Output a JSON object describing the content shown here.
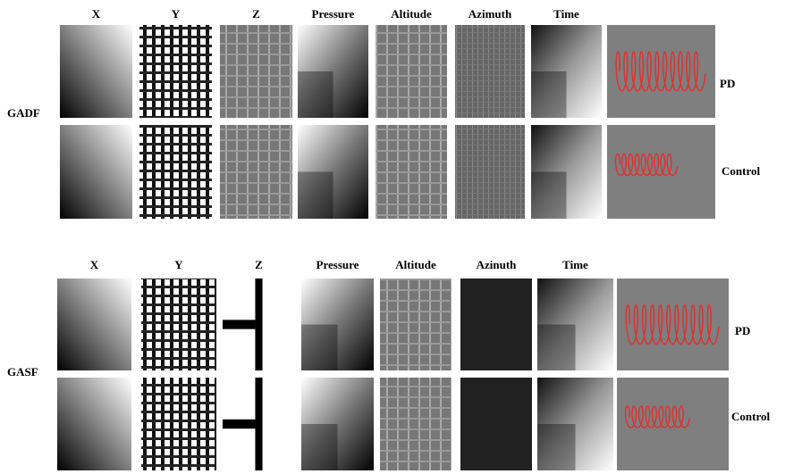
{
  "panels": [
    {
      "label": "GADF",
      "columns": [
        "X",
        "Y",
        "Z",
        "Pressure",
        "Altitude",
        "Azimuth",
        "Time"
      ],
      "rows": [
        "PD",
        "Control"
      ]
    },
    {
      "label": "GASF",
      "columns": [
        "X",
        "Y",
        "Z",
        "Pressure",
        "Altitude",
        "Azinuth",
        "Time"
      ],
      "rows": [
        "PD",
        "Control"
      ]
    }
  ]
}
